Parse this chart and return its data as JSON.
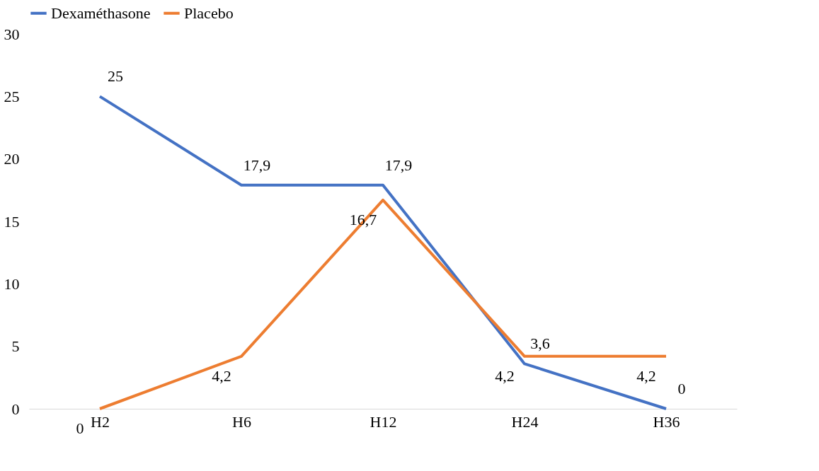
{
  "chart_data": {
    "type": "line",
    "categories": [
      "H2",
      "H6",
      "H12",
      "H24",
      "H36"
    ],
    "series": [
      {
        "name": "Dexaméthasone",
        "color": "#4472c4",
        "values": [
          25,
          17.9,
          17.9,
          3.6,
          0
        ],
        "value_labels": [
          "25",
          "17,9",
          "17,9",
          "3,6",
          "0"
        ]
      },
      {
        "name": "Placebo",
        "color": "#ed7d31",
        "values": [
          0,
          4.2,
          16.7,
          4.2,
          4.2
        ],
        "value_labels": [
          "0",
          "4,2",
          "16,7",
          "4,2",
          "4,2"
        ]
      }
    ],
    "ylim": [
      0,
      30
    ],
    "yticks": [
      0,
      5,
      10,
      15,
      20,
      25,
      30
    ],
    "grid": false,
    "legend": "top",
    "marker": "none",
    "line_style": "solid"
  }
}
